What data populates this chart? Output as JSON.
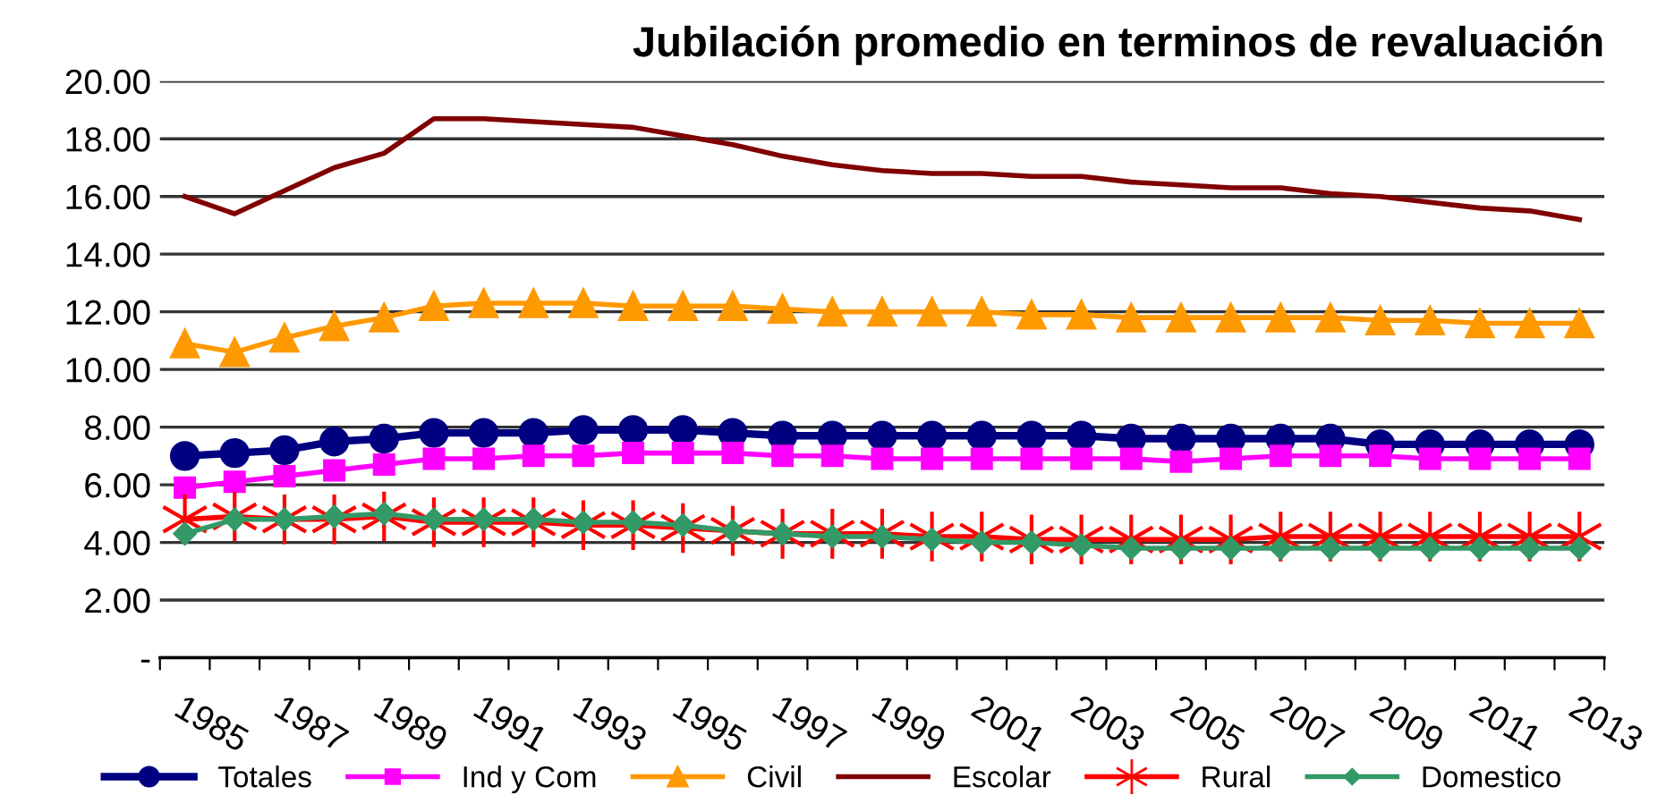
{
  "chart_data": {
    "type": "line",
    "title": "Jubilación promedio en terminos de revaluación",
    "categories": [
      "1985",
      null,
      "1987",
      null,
      "1989",
      null,
      "1991",
      null,
      "1993",
      null,
      "1995",
      null,
      "1997",
      null,
      "1999",
      null,
      "2001",
      null,
      "2003",
      null,
      "2005",
      null,
      "2007",
      null,
      "2009",
      null,
      "2011",
      null,
      "2013"
    ],
    "series": [
      {
        "name": "Totales",
        "color": "#000080",
        "marker": "circle",
        "values": [
          7.0,
          7.1,
          7.2,
          7.5,
          7.6,
          7.8,
          7.8,
          7.8,
          7.9,
          7.9,
          7.9,
          7.8,
          7.7,
          7.7,
          7.7,
          7.7,
          7.7,
          7.7,
          7.7,
          7.6,
          7.6,
          7.6,
          7.6,
          7.6,
          7.4,
          7.4,
          7.4,
          7.4,
          7.4
        ]
      },
      {
        "name": "Ind y Com",
        "color": "#ff00ff",
        "marker": "square",
        "values": [
          5.9,
          6.1,
          6.3,
          6.5,
          6.7,
          6.9,
          6.9,
          7.0,
          7.0,
          7.1,
          7.1,
          7.1,
          7.0,
          7.0,
          6.9,
          6.9,
          6.9,
          6.9,
          6.9,
          6.9,
          6.8,
          6.9,
          7.0,
          7.0,
          7.0,
          6.9,
          6.9,
          6.9,
          6.9
        ]
      },
      {
        "name": "Civil",
        "color": "#ff9900",
        "marker": "triangle",
        "values": [
          10.9,
          10.6,
          11.1,
          11.5,
          11.8,
          12.2,
          12.3,
          12.3,
          12.3,
          12.2,
          12.2,
          12.2,
          12.1,
          12.0,
          12.0,
          12.0,
          12.0,
          11.9,
          11.9,
          11.8,
          11.8,
          11.8,
          11.8,
          11.8,
          11.7,
          11.7,
          11.6,
          11.6,
          11.6
        ]
      },
      {
        "name": "Escolar",
        "color": "#800000",
        "marker": "none",
        "values": [
          16.0,
          15.4,
          16.2,
          17.0,
          17.5,
          18.7,
          18.7,
          18.6,
          18.5,
          18.4,
          18.1,
          17.8,
          17.4,
          17.1,
          16.9,
          16.8,
          16.8,
          16.7,
          16.7,
          16.5,
          16.4,
          16.3,
          16.3,
          16.1,
          16.0,
          15.8,
          15.6,
          15.5,
          15.2
        ]
      },
      {
        "name": "Rural",
        "color": "#ff0000",
        "marker": "cross",
        "values": [
          4.8,
          4.9,
          4.8,
          4.8,
          4.9,
          4.7,
          4.7,
          4.7,
          4.6,
          4.6,
          4.5,
          4.4,
          4.3,
          4.3,
          4.3,
          4.2,
          4.2,
          4.1,
          4.1,
          4.1,
          4.1,
          4.1,
          4.2,
          4.2,
          4.2,
          4.2,
          4.2,
          4.2,
          4.2
        ]
      },
      {
        "name": "Domestico",
        "color": "#339966",
        "marker": "diamond",
        "values": [
          4.3,
          4.8,
          4.8,
          4.9,
          5.0,
          4.8,
          4.8,
          4.8,
          4.7,
          4.7,
          4.6,
          4.4,
          4.3,
          4.2,
          4.2,
          4.1,
          4.0,
          4.0,
          3.9,
          3.8,
          3.8,
          3.8,
          3.8,
          3.8,
          3.8,
          3.8,
          3.8,
          3.8,
          3.8
        ]
      }
    ],
    "ylim": [
      0,
      20
    ],
    "yticks": [
      {
        "value": 0,
        "label": "-"
      },
      {
        "value": 2,
        "label": "2.00"
      },
      {
        "value": 4,
        "label": "4.00"
      },
      {
        "value": 6,
        "label": "6.00"
      },
      {
        "value": 8,
        "label": "8.00"
      },
      {
        "value": 10,
        "label": "10.00"
      },
      {
        "value": 12,
        "label": "12.00"
      },
      {
        "value": 14,
        "label": "14.00"
      },
      {
        "value": 16,
        "label": "16.00"
      },
      {
        "value": 18,
        "label": "18.00"
      },
      {
        "value": 20,
        "label": "20.00"
      }
    ],
    "grid": "y",
    "legend": "bottom"
  }
}
